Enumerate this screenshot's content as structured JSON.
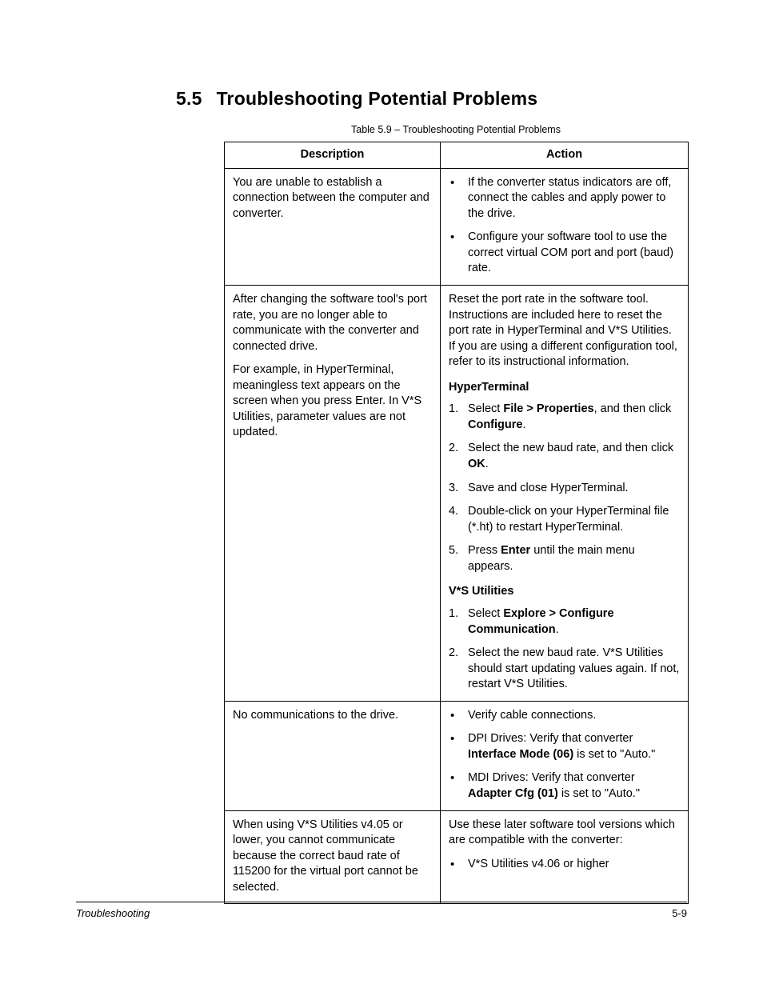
{
  "heading": {
    "number": "5.5",
    "title": "Troubleshooting Potential Problems"
  },
  "caption": "Table 5.9 – Troubleshooting Potential Problems",
  "columns": {
    "description": "Description",
    "action": "Action"
  },
  "rows": {
    "r1": {
      "desc": "You are unable to establish a connection between the computer and converter.",
      "act_b1": "If the converter status indicators are off, connect the cables and apply power to the drive.",
      "act_b2": "Configure your software tool to use the correct virtual COM port and port (baud) rate."
    },
    "r2": {
      "desc_p1": "After changing the software tool's port rate, you are no longer able to communicate with the converter and connected drive.",
      "desc_p2": "For example, in HyperTerminal, meaningless text appears on the screen when you press Enter. In V*S Utilities, parameter values are not updated.",
      "act_intro": "Reset the port rate in the software tool. Instructions are included here to reset the port rate in HyperTerminal and V*S Utilities. If you are using a different configuration tool, refer to its instructional information.",
      "hyper_head": "HyperTerminal",
      "h1_a": "Select ",
      "h1_b": "File > Properties",
      "h1_c": ", and then click ",
      "h1_d": "Configure",
      "h1_e": ".",
      "h2_a": "Select the new baud rate, and then click ",
      "h2_b": "OK",
      "h2_c": ".",
      "h3": "Save and close HyperTerminal.",
      "h4": "Double-click on your HyperTerminal file (*.ht) to restart HyperTerminal.",
      "h5_a": "Press ",
      "h5_b": "Enter",
      "h5_c": " until the main menu appears.",
      "vs_head": "V*S Utilities",
      "v1_a": "Select ",
      "v1_b": "Explore > Configure Communication",
      "v1_c": ".",
      "v2": "Select the new baud rate. V*S Utilities should start updating values again. If not, restart V*S Utilities."
    },
    "r3": {
      "desc": "No communications to the drive.",
      "b1": "Verify cable connections.",
      "b2_a": "DPI Drives: Verify that converter ",
      "b2_b": "Interface Mode (06)",
      "b2_c": " is set to \"Auto.\"",
      "b3_a": "MDI Drives: Verify that converter ",
      "b3_b": "Adapter Cfg (01)",
      "b3_c": " is set to \"Auto.\""
    },
    "r4": {
      "desc": "When using V*S Utilities v4.05 or lower, you cannot communicate because the correct baud rate of 115200 for the virtual port cannot be selected.",
      "act_p": "Use these later software tool versions which are compatible with the converter:",
      "b1": "V*S Utilities v4.06 or higher"
    }
  },
  "footer": {
    "left": "Troubleshooting",
    "right": "5-9"
  }
}
